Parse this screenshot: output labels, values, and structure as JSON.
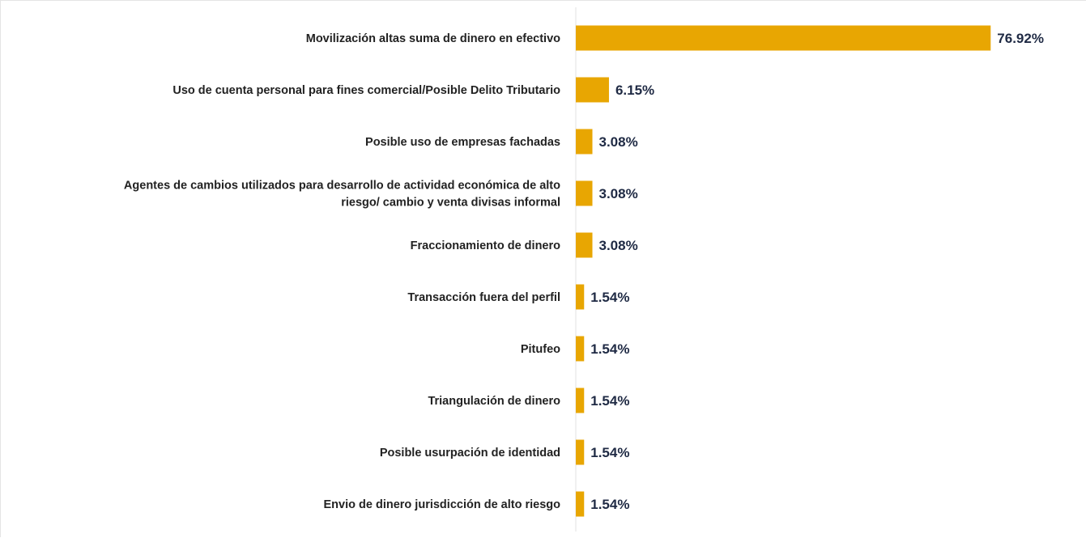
{
  "chart_data": {
    "type": "bar",
    "orientation": "horizontal",
    "categories": [
      [
        "Movilización altas suma de dinero en efectivo"
      ],
      [
        "Uso de cuenta personal para fines comercial/Posible Delito Tributario"
      ],
      [
        "Posible uso de empresas fachadas"
      ],
      [
        "Agentes de cambios utilizados para desarrollo de actividad económica de alto",
        "riesgo/ cambio y venta divisas informal"
      ],
      [
        "Fraccionamiento de dinero"
      ],
      [
        "Transacción fuera del perfil"
      ],
      [
        "Pitufeo"
      ],
      [
        "Triangulación de dinero"
      ],
      [
        "Posible usurpación de identidad"
      ],
      [
        "Envio de dinero jurisdicción de alto riesgo"
      ]
    ],
    "values": [
      76.92,
      6.15,
      3.08,
      3.08,
      3.08,
      1.54,
      1.54,
      1.54,
      1.54,
      1.54
    ],
    "value_labels": [
      "76.92%",
      "6.15%",
      "3.08%",
      "3.08%",
      "3.08%",
      "1.54%",
      "1.54%",
      "1.54%",
      "1.54%",
      "1.54%"
    ],
    "xlim": [
      0,
      100
    ],
    "grid": false,
    "legend": "none",
    "colors": {
      "bar": "#E8A602",
      "axis": "#e2e2e2",
      "category_text": "#222222",
      "value_text": "#1f2a44"
    }
  }
}
